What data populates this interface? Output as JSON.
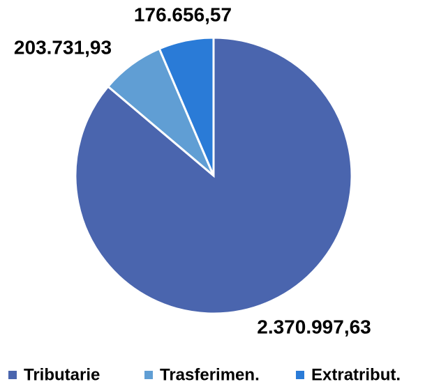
{
  "chart_data": {
    "type": "pie",
    "categories": [
      "Tributarie",
      "Trasferimen.",
      "Extratribut."
    ],
    "values": [
      2370997.63,
      203731.93,
      176656.57
    ],
    "value_labels": [
      "2.370.997,63",
      "203.731,93",
      "176.656,57"
    ],
    "colors": [
      "#4a65ae",
      "#609ed4",
      "#2a7bd7"
    ],
    "legend": "bottom"
  }
}
